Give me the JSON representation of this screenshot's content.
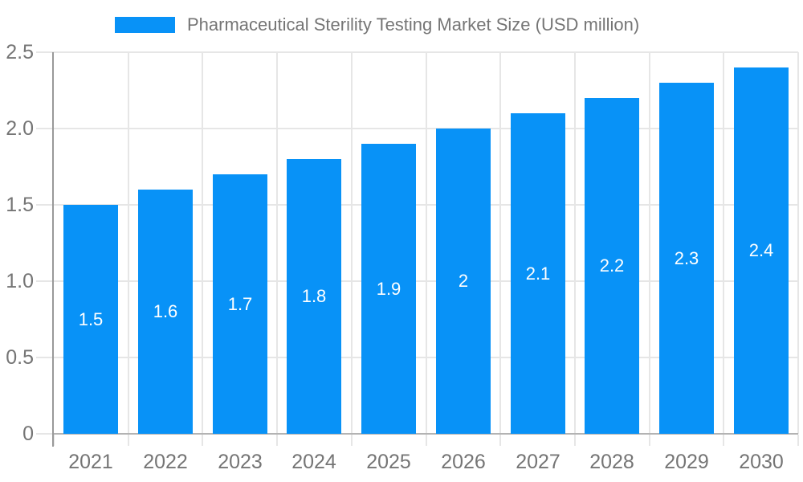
{
  "legend": {
    "label": "Pharmaceutical Sterility Testing Market Size (USD million)"
  },
  "chart_data": {
    "type": "bar",
    "title": "Pharmaceutical Sterility Testing Market Size (USD million)",
    "categories": [
      "2021",
      "2022",
      "2023",
      "2024",
      "2025",
      "2026",
      "2027",
      "2028",
      "2029",
      "2030"
    ],
    "values": [
      1.5,
      1.6,
      1.7,
      1.8,
      1.9,
      2,
      2.1,
      2.2,
      2.3,
      2.4
    ],
    "value_labels": [
      "1.5",
      "1.6",
      "1.7",
      "1.8",
      "1.9",
      "2",
      "2.1",
      "2.2",
      "2.3",
      "2.4"
    ],
    "xlabel": "",
    "ylabel": "",
    "ylim": [
      0,
      2.5
    ],
    "yticks": [
      0,
      0.5,
      1,
      1.5,
      2,
      2.5
    ],
    "ytick_labels": [
      "0",
      "0.5",
      "1.0",
      "1.5",
      "2.0",
      "2.5"
    ],
    "grid": true,
    "legend_position": "top",
    "colors": {
      "bar": "#0892f7",
      "grid": "#e6e6e6",
      "x_axis_line": "#b3b3b3",
      "y_axis_line": "#999999",
      "axis_text": "#757575",
      "bar_label_text": "#ffffff",
      "background": "#ffffff"
    }
  }
}
